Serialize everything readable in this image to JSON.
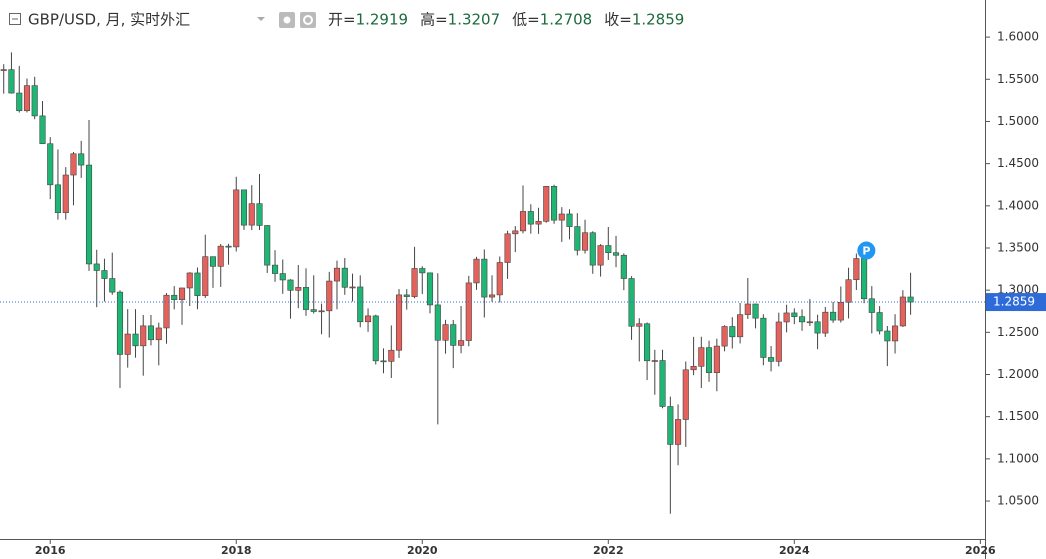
{
  "chart_data": {
    "type": "candlestick",
    "title": "GBP/USD, 月, 实时外汇",
    "ohlc_labels": [
      "开=",
      "高=",
      "低=",
      "收="
    ],
    "annotation": "P",
    "up_color": "#e5615c",
    "down_color": "#1fb574",
    "price_line_color": "#2f6bd8",
    "x": [
      2015.5,
      2015.583,
      2015.667,
      2015.75,
      2015.833,
      2015.917,
      2016,
      2016.083,
      2016.167,
      2016.25,
      2016.333,
      2016.417,
      2016.5,
      2016.583,
      2016.667,
      2016.75,
      2016.833,
      2016.917,
      2017,
      2017.083,
      2017.167,
      2017.25,
      2017.333,
      2017.417,
      2017.5,
      2017.583,
      2017.667,
      2017.75,
      2017.833,
      2017.917,
      2018,
      2018.083,
      2018.167,
      2018.25,
      2018.333,
      2018.417,
      2018.5,
      2018.583,
      2018.667,
      2018.75,
      2018.833,
      2018.917,
      2019,
      2019.083,
      2019.167,
      2019.25,
      2019.333,
      2019.417,
      2019.5,
      2019.583,
      2019.667,
      2019.75,
      2019.833,
      2019.917,
      2020,
      2020.083,
      2020.167,
      2020.25,
      2020.333,
      2020.417,
      2020.5,
      2020.583,
      2020.667,
      2020.75,
      2020.833,
      2020.917,
      2021,
      2021.083,
      2021.167,
      2021.25,
      2021.333,
      2021.417,
      2021.5,
      2021.583,
      2021.667,
      2021.75,
      2021.833,
      2021.917,
      2022,
      2022.083,
      2022.167,
      2022.25,
      2022.333,
      2022.417,
      2022.5,
      2022.583,
      2022.667,
      2022.75,
      2022.833,
      2022.917,
      2023,
      2023.083,
      2023.167,
      2023.25,
      2023.333,
      2023.417,
      2023.5,
      2023.583,
      2023.667,
      2023.75,
      2023.833,
      2023.917,
      2024,
      2024.083,
      2024.167,
      2024.25,
      2024.333,
      2024.417,
      2024.5,
      2024.583,
      2024.667,
      2024.75,
      2024.833,
      2024.917,
      2025,
      2025.083,
      2025.167,
      2025.25
    ],
    "open": [
      1.5604,
      1.5615,
      1.5337,
      1.5127,
      1.5425,
      1.5066,
      1.4736,
      1.4249,
      1.3919,
      1.4365,
      1.4617,
      1.4483,
      1.3311,
      1.3233,
      1.3138,
      1.2977,
      1.2238,
      1.248,
      1.234,
      1.2577,
      1.2412,
      1.2552,
      1.294,
      1.2887,
      1.3026,
      1.3204,
      1.2935,
      1.3397,
      1.3282,
      1.3522,
      1.3513,
      1.4189,
      1.3771,
      1.4026,
      1.3767,
      1.3297,
      1.3197,
      1.3121,
      1.2998,
      1.3033,
      1.277,
      1.2747,
      1.2755,
      1.3108,
      1.3261,
      1.3034,
      1.3038,
      1.2625,
      1.2695,
      1.2162,
      1.2156,
      1.2288,
      1.2944,
      1.2924,
      1.3257,
      1.3205,
      1.2825,
      1.2406,
      1.2592,
      1.2345,
      1.2403,
      1.3086,
      1.3368,
      1.2918,
      1.2944,
      1.3328,
      1.3668,
      1.3703,
      1.3933,
      1.3783,
      1.3816,
      1.4231,
      1.383,
      1.3903,
      1.3754,
      1.3473,
      1.3681,
      1.3297,
      1.3529,
      1.3444,
      1.3414,
      1.3138,
      1.2572,
      1.2602,
      1.2163,
      1.2166,
      1.1621,
      1.1171,
      1.1467,
      1.2056,
      1.2097,
      1.2319,
      1.2022,
      1.2337,
      1.2569,
      1.2447,
      1.271,
      1.2836,
      1.2668,
      1.2202,
      1.2156,
      1.2623,
      1.273,
      1.2686,
      1.2624,
      1.2625,
      1.2491,
      1.2739,
      1.2645,
      1.2856,
      1.3124,
      1.3375,
      1.2898,
      1.2735,
      1.2516,
      1.2398,
      1.2576,
      1.2919
    ],
    "high": [
      1.5679,
      1.5819,
      1.5659,
      1.5509,
      1.553,
      1.5242,
      1.4814,
      1.4668,
      1.4459,
      1.4638,
      1.477,
      1.5018,
      1.3479,
      1.3373,
      1.3445,
      1.2999,
      1.2775,
      1.2775,
      1.2706,
      1.2706,
      1.2615,
      1.2966,
      1.3048,
      1.303,
      1.3213,
      1.3269,
      1.3657,
      1.34,
      1.3548,
      1.355,
      1.4345,
      1.419,
      1.4245,
      1.4377,
      1.377,
      1.3474,
      1.3363,
      1.313,
      1.3298,
      1.3259,
      1.3176,
      1.284,
      1.3217,
      1.335,
      1.3381,
      1.3196,
      1.3176,
      1.2784,
      1.2709,
      1.231,
      1.2582,
      1.3013,
      1.3012,
      1.3514,
      1.3284,
      1.321,
      1.32,
      1.2648,
      1.2647,
      1.2813,
      1.317,
      1.3395,
      1.3483,
      1.3176,
      1.3399,
      1.3704,
      1.376,
      1.4241,
      1.4018,
      1.3977,
      1.4234,
      1.425,
      1.3984,
      1.3959,
      1.3913,
      1.3835,
      1.3698,
      1.3546,
      1.3749,
      1.3644,
      1.3437,
      1.3166,
      1.2667,
      1.2617,
      1.2293,
      1.2294,
      1.1738,
      1.1646,
      1.2154,
      1.2446,
      1.2448,
      1.2402,
      1.2424,
      1.2584,
      1.268,
      1.2848,
      1.3144,
      1.284,
      1.2714,
      1.2337,
      1.2733,
      1.2827,
      1.2785,
      1.2772,
      1.2894,
      1.2709,
      1.2801,
      1.2861,
      1.3044,
      1.3266,
      1.3434,
      1.3391,
      1.3048,
      1.2811,
      1.2575,
      1.2715,
      1.2999,
      1.3207
    ],
    "low": [
      1.533,
      1.533,
      1.5106,
      1.5107,
      1.5027,
      1.4744,
      1.4079,
      1.3836,
      1.3836,
      1.4006,
      1.4331,
      1.3229,
      1.2798,
      1.2866,
      1.2945,
      1.1841,
      1.2082,
      1.2199,
      1.1986,
      1.2345,
      1.2109,
      1.2365,
      1.2772,
      1.2589,
      1.2812,
      1.2774,
      1.2908,
      1.3027,
      1.3039,
      1.3302,
      1.3458,
      1.3714,
      1.3712,
      1.3713,
      1.3204,
      1.3099,
      1.2957,
      1.2662,
      1.2786,
      1.2696,
      1.2723,
      1.2477,
      1.2438,
      1.2773,
      1.2945,
      1.2866,
      1.256,
      1.2506,
      1.2119,
      1.2015,
      1.1959,
      1.2196,
      1.2769,
      1.2904,
      1.2954,
      1.2725,
      1.1409,
      1.2247,
      1.2076,
      1.2252,
      1.2335,
      1.3004,
      1.2676,
      1.2863,
      1.2855,
      1.3134,
      1.3451,
      1.3674,
      1.367,
      1.3668,
      1.38,
      1.3787,
      1.3572,
      1.3602,
      1.3412,
      1.3434,
      1.3194,
      1.3161,
      1.3358,
      1.3272,
      1.3,
      1.2411,
      1.2155,
      1.1934,
      1.176,
      1.16,
      1.035,
      1.0924,
      1.1142,
      1.1992,
      1.1841,
      1.1914,
      1.1802,
      1.2275,
      1.2308,
      1.2368,
      1.2659,
      1.2547,
      1.211,
      1.2037,
      1.2096,
      1.25,
      1.2597,
      1.2518,
      1.2575,
      1.23,
      1.2446,
      1.2613,
      1.2616,
      1.2665,
      1.3002,
      1.2845,
      1.2487,
      1.2475,
      1.21,
      1.2249,
      1.2563,
      1.2708
    ],
    "close": [
      1.5615,
      1.5337,
      1.5127,
      1.5425,
      1.5066,
      1.4736,
      1.4249,
      1.3919,
      1.4365,
      1.4617,
      1.4483,
      1.3311,
      1.3233,
      1.3138,
      1.2977,
      1.2238,
      1.248,
      1.234,
      1.2577,
      1.2412,
      1.2552,
      1.294,
      1.2887,
      1.3026,
      1.3204,
      1.2935,
      1.3397,
      1.3282,
      1.3522,
      1.3513,
      1.4189,
      1.3771,
      1.4026,
      1.3767,
      1.3297,
      1.3197,
      1.3121,
      1.2998,
      1.3033,
      1.277,
      1.2747,
      1.2755,
      1.3108,
      1.3261,
      1.3034,
      1.3038,
      1.2625,
      1.2695,
      1.2162,
      1.2156,
      1.2288,
      1.2944,
      1.2924,
      1.3257,
      1.3205,
      1.2825,
      1.2406,
      1.2592,
      1.2345,
      1.2403,
      1.3086,
      1.3368,
      1.2918,
      1.2944,
      1.3328,
      1.3668,
      1.3703,
      1.3933,
      1.3783,
      1.3816,
      1.4231,
      1.383,
      1.3903,
      1.3754,
      1.3473,
      1.3681,
      1.3297,
      1.3529,
      1.3444,
      1.3414,
      1.3138,
      1.2572,
      1.2602,
      1.2163,
      1.2166,
      1.1621,
      1.1171,
      1.1467,
      1.2056,
      1.2097,
      1.2319,
      1.2022,
      1.2337,
      1.2569,
      1.2447,
      1.271,
      1.2836,
      1.2668,
      1.2202,
      1.2156,
      1.2623,
      1.273,
      1.2686,
      1.2624,
      1.2625,
      1.2491,
      1.2739,
      1.2645,
      1.2856,
      1.3124,
      1.3375,
      1.2898,
      1.2735,
      1.2516,
      1.2398,
      1.2576,
      1.2919,
      1.2859
    ],
    "xlim": [
      2015.46,
      2026.05
    ],
    "xticks": [
      2016,
      2018,
      2020,
      2022,
      2024,
      2026
    ],
    "ylim": [
      1.005,
      1.644
    ],
    "yticks": [
      {
        "value": 1.05,
        "label": "1.0500"
      },
      {
        "value": 1.1,
        "label": "1.1000"
      },
      {
        "value": 1.15,
        "label": "1.1500"
      },
      {
        "value": 1.2,
        "label": "1.2000"
      },
      {
        "value": 1.25,
        "label": "1.2500"
      },
      {
        "value": 1.3,
        "label": "1.3000"
      },
      {
        "value": 1.35,
        "label": "1.3500"
      },
      {
        "value": 1.4,
        "label": "1.4000"
      },
      {
        "value": 1.45,
        "label": "1.4500"
      },
      {
        "value": 1.5,
        "label": "1.5000"
      },
      {
        "value": 1.55,
        "label": "1.5500"
      },
      {
        "value": 1.6,
        "label": "1.6000"
      }
    ],
    "annotation_index": 110
  }
}
